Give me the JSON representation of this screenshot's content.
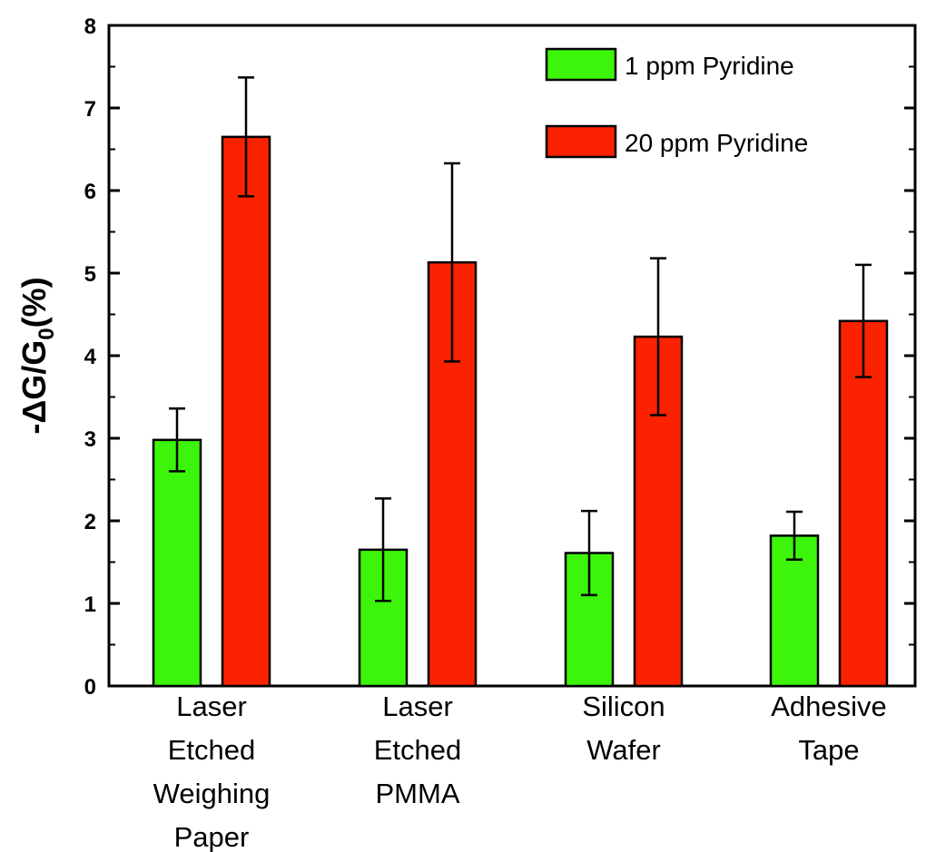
{
  "colors": {
    "series_1": "#3cf50a",
    "series_2": "#fa2200",
    "axis": "#000000",
    "background": "#ffffff"
  },
  "chart_data": {
    "type": "bar",
    "ylabel_parts": {
      "prefix": "-ΔG/G",
      "subscript": "0",
      "suffix": "(%)"
    },
    "ylabel": "-ΔG/G0(%)",
    "xlabel": "",
    "ylim": [
      0,
      8
    ],
    "yticks": [
      "0",
      "1",
      "2",
      "3",
      "4",
      "5",
      "6",
      "7",
      "8"
    ],
    "categories": [
      [
        "Laser",
        "Etched",
        "Weighing",
        "Paper"
      ],
      [
        "Laser",
        "Etched",
        "PMMA"
      ],
      [
        "Silicon",
        "Wafer"
      ],
      [
        "Adhesive",
        "Tape"
      ]
    ],
    "series": [
      {
        "name": "1 ppm Pyridine",
        "values": [
          2.98,
          1.65,
          1.61,
          1.82
        ],
        "errors": [
          0.38,
          0.62,
          0.51,
          0.29
        ]
      },
      {
        "name": "20 ppm Pyridine",
        "values": [
          6.65,
          5.13,
          4.23,
          4.42
        ],
        "errors": [
          0.72,
          1.2,
          0.95,
          0.68
        ]
      }
    ],
    "legend_position": "top-right",
    "grid": false,
    "error_bars": true
  }
}
